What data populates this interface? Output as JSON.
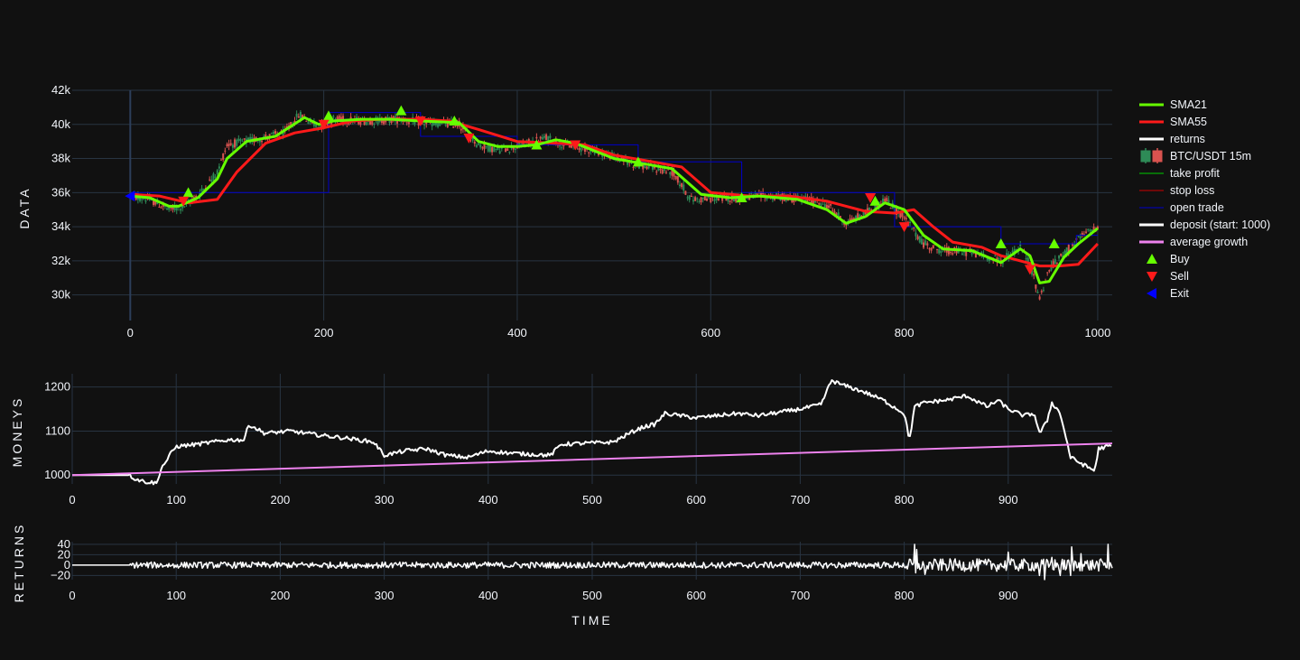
{
  "colors": {
    "background": "#111111",
    "grid": "#283442",
    "text": "#f2f5fa",
    "sma21": "#66ff00",
    "sma55": "#ff1a1a",
    "candle_up": "#2e8b57",
    "candle_down": "#d9534f",
    "take_profit": "#00cc00",
    "stop_loss": "#cc0000",
    "open_trade": "#0000cc",
    "deposit": "#ffffff",
    "average_growth": "#ee82ee",
    "returns": "#ffffff",
    "buy": "#66ff00",
    "sell": "#ff1a1a",
    "exit": "#0000ff"
  },
  "axes": {
    "data_title": "DATA",
    "moneys_title": "MONEYS",
    "returns_title": "RETURNS",
    "time_title": "TIME"
  },
  "legend": [
    {
      "label": "SMA21",
      "icon": "line",
      "color": "#66ff00"
    },
    {
      "label": "SMA55",
      "icon": "line",
      "color": "#ff1a1a"
    },
    {
      "label": "returns",
      "icon": "line",
      "color": "#ffffff"
    },
    {
      "label": "BTC/USDT 15m",
      "icon": "candle",
      "color": "#2e8b57"
    },
    {
      "label": "take profit",
      "icon": "thin-line",
      "color": "#00cc00"
    },
    {
      "label": "stop loss",
      "icon": "thin-line",
      "color": "#cc0000"
    },
    {
      "label": "open trade",
      "icon": "thin-line",
      "color": "#0000cc"
    },
    {
      "label": "deposit (start: 1000)",
      "icon": "line",
      "color": "#ffffff"
    },
    {
      "label": "average growth",
      "icon": "line",
      "color": "#ee82ee"
    },
    {
      "label": "Buy",
      "icon": "triangle-up",
      "color": "#66ff00"
    },
    {
      "label": "Sell",
      "icon": "triangle-down",
      "color": "#ff1a1a"
    },
    {
      "label": "Exit",
      "icon": "triangle-left",
      "color": "#0000ff"
    }
  ],
  "chart_data": [
    {
      "type": "line",
      "panel": "price",
      "xlabel": "",
      "ylabel": "DATA",
      "xlim": [
        -60,
        1015
      ],
      "ylim": [
        28500,
        42000
      ],
      "xticks": [
        0,
        200,
        400,
        600,
        800,
        1000
      ],
      "xtick_labels": [
        "0",
        "200",
        "400",
        "600",
        "800",
        "1000"
      ],
      "yticks": [
        30000,
        32000,
        34000,
        36000,
        38000,
        40000,
        42000
      ],
      "ytick_labels": [
        "30k",
        "32k",
        "34k",
        "36k",
        "38k",
        "40k",
        "42k"
      ],
      "price_anchors": {
        "x": [
          0,
          20,
          40,
          55,
          70,
          90,
          100,
          120,
          160,
          175,
          185,
          195,
          210,
          240,
          280,
          300,
          340,
          360,
          380,
          400,
          430,
          450,
          480,
          520,
          560,
          580,
          620,
          660,
          700,
          720,
          740,
          760,
          780,
          800,
          820,
          840,
          870,
          900,
          920,
          930,
          940,
          950,
          970,
          985,
          1000
        ],
        "y": [
          35800,
          35600,
          35000,
          35200,
          35800,
          37200,
          38800,
          39000,
          39500,
          40600,
          40200,
          39900,
          40300,
          40200,
          40300,
          40100,
          40000,
          38800,
          38500,
          38700,
          39200,
          38800,
          38500,
          37700,
          37200,
          35600,
          35700,
          35800,
          35600,
          35300,
          34200,
          34800,
          35600,
          34500,
          33000,
          32600,
          32500,
          32000,
          32800,
          31800,
          29800,
          31500,
          32700,
          33500,
          34000
        ]
      },
      "series": [
        {
          "name": "SMA21",
          "x": [
            0,
            20,
            40,
            50,
            70,
            90,
            100,
            120,
            150,
            180,
            195,
            210,
            240,
            270,
            300,
            340,
            360,
            380,
            400,
            420,
            440,
            460,
            500,
            530,
            560,
            590,
            620,
            650,
            690,
            720,
            740,
            760,
            780,
            800,
            820,
            840,
            870,
            900,
            920,
            930,
            940,
            950,
            965,
            980,
            1000
          ],
          "y": [
            35800,
            35700,
            35200,
            35200,
            35700,
            36800,
            38000,
            39000,
            39300,
            40400,
            40000,
            40200,
            40300,
            40300,
            40200,
            40100,
            39000,
            38700,
            38700,
            38800,
            39100,
            38900,
            38000,
            37700,
            37400,
            35900,
            35700,
            35800,
            35600,
            35000,
            34200,
            34600,
            35400,
            35000,
            33500,
            32700,
            32600,
            31900,
            32700,
            32300,
            30700,
            30800,
            32200,
            33000,
            33900
          ]
        },
        {
          "name": "SMA55",
          "x": [
            0,
            30,
            60,
            90,
            110,
            140,
            170,
            200,
            230,
            260,
            300,
            330,
            360,
            400,
            440,
            470,
            500,
            530,
            570,
            600,
            640,
            680,
            720,
            760,
            790,
            810,
            830,
            850,
            880,
            900,
            920,
            940,
            960,
            980,
            1000
          ],
          "y": [
            35900,
            35800,
            35400,
            35600,
            37200,
            38900,
            39500,
            39800,
            40200,
            40300,
            40300,
            40200,
            39700,
            39000,
            38900,
            38800,
            38200,
            37900,
            37500,
            36000,
            35800,
            35800,
            35500,
            34900,
            34800,
            35000,
            34000,
            33100,
            32800,
            32300,
            32000,
            31700,
            31700,
            31800,
            33000
          ]
        },
        {
          "name": "open trade",
          "x": [
            0,
            205,
            205,
            300,
            300,
            400,
            400,
            525,
            525,
            632,
            632,
            790,
            790,
            900,
            900,
            978,
            978,
            1000
          ],
          "y": [
            36000,
            36000,
            40700,
            40700,
            39300,
            39300,
            38800,
            38800,
            37800,
            37800,
            36000,
            36000,
            34000,
            34000,
            33000,
            33000,
            33500,
            33500
          ]
        }
      ],
      "markers": {
        "buy": {
          "x": [
            60,
            205,
            280,
            335,
            420,
            525,
            632,
            770,
            900,
            955
          ],
          "y": [
            36000,
            40500,
            40800,
            40200,
            38800,
            37800,
            35700,
            35500,
            33000,
            33000
          ]
        },
        "sell": {
          "x": [
            55,
            200,
            300,
            350,
            460,
            765,
            800,
            930
          ],
          "y": [
            35500,
            40000,
            40200,
            39200,
            38800,
            35700,
            34000,
            31500
          ]
        },
        "exit": {
          "x": [
            0
          ],
          "y": [
            35800
          ]
        }
      }
    },
    {
      "type": "line",
      "panel": "moneys",
      "xlabel": "",
      "ylabel": "MONEYS",
      "xlim": [
        0,
        1000
      ],
      "ylim": [
        980,
        1230
      ],
      "xticks": [
        0,
        100,
        200,
        300,
        400,
        500,
        600,
        700,
        800,
        900
      ],
      "xtick_labels": [
        "0",
        "100",
        "200",
        "300",
        "400",
        "500",
        "600",
        "700",
        "800",
        "900"
      ],
      "yticks": [
        1000,
        1100,
        1200
      ],
      "ytick_labels": [
        "1000",
        "1100",
        "1200"
      ],
      "series": [
        {
          "name": "deposit (start: 1000)",
          "x": [
            0,
            55,
            60,
            70,
            82,
            85,
            90,
            95,
            100,
            120,
            150,
            165,
            170,
            185,
            210,
            240,
            260,
            290,
            300,
            320,
            340,
            360,
            380,
            400,
            420,
            460,
            470,
            520,
            540,
            550,
            560,
            570,
            600,
            640,
            660,
            700,
            720,
            730,
            740,
            760,
            780,
            800,
            805,
            810,
            820,
            840,
            860,
            880,
            890,
            900,
            915,
            925,
            930,
            937,
            942,
            950,
            960,
            975,
            983,
            987,
            995,
            1000
          ],
          "y": [
            1000,
            1000,
            992,
            985,
            982,
            1015,
            1030,
            1050,
            1065,
            1070,
            1080,
            1080,
            1115,
            1095,
            1100,
            1090,
            1085,
            1075,
            1045,
            1055,
            1060,
            1045,
            1040,
            1055,
            1050,
            1045,
            1070,
            1075,
            1100,
            1110,
            1115,
            1140,
            1130,
            1140,
            1135,
            1150,
            1160,
            1215,
            1205,
            1190,
            1170,
            1140,
            1080,
            1155,
            1165,
            1170,
            1180,
            1155,
            1170,
            1150,
            1135,
            1140,
            1095,
            1120,
            1165,
            1140,
            1040,
            1020,
            1010,
            1060,
            1065,
            1065
          ]
        },
        {
          "name": "average growth",
          "x": [
            0,
            1000
          ],
          "y": [
            1000,
            1072
          ]
        }
      ]
    },
    {
      "type": "line",
      "panel": "returns",
      "xlabel": "TIME",
      "ylabel": "RETURNS",
      "xlim": [
        0,
        1000
      ],
      "ylim": [
        -28,
        45
      ],
      "xticks": [
        0,
        100,
        200,
        300,
        400,
        500,
        600,
        700,
        800,
        900
      ],
      "xtick_labels": [
        "0",
        "100",
        "200",
        "300",
        "400",
        "500",
        "600",
        "700",
        "800",
        "900"
      ],
      "yticks": [
        -20,
        0,
        20,
        40
      ],
      "ytick_labels": [
        "−20",
        "0",
        "20",
        "40"
      ],
      "series": [
        {
          "name": "returns",
          "spikes": {
            "x": [
              98,
              98.5,
              165,
              165.5,
              735,
              810,
              811,
              812,
              820,
              900,
              960,
              961,
              995,
              996,
              930,
              935,
              942,
              950,
              970
            ],
            "y": [
              -5,
              35,
              -3,
              25,
              -5,
              40,
              -15,
              30,
              -18,
              25,
              -20,
              35,
              -5,
              40,
              -20,
              -28,
              15,
              -20,
              22
            ]
          }
        }
      ]
    }
  ]
}
